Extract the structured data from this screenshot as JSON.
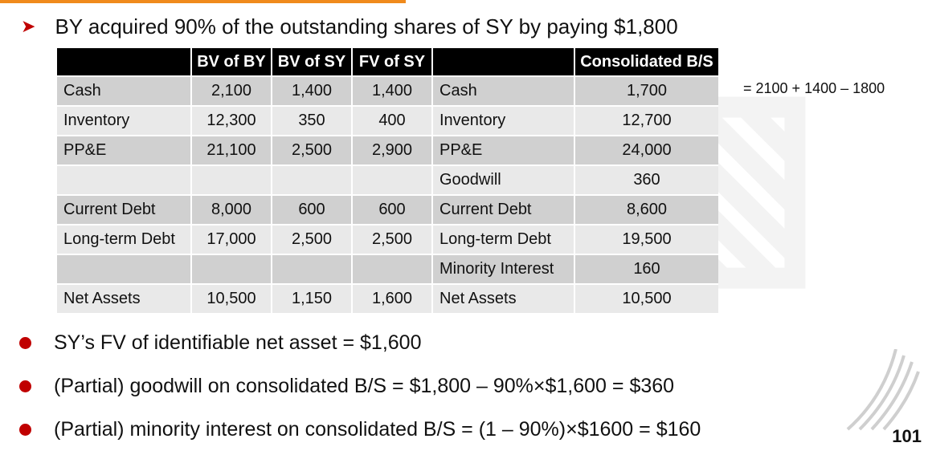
{
  "headline": "BY acquired 90% of the outstanding shares of SY by paying $1,800",
  "table": {
    "headers": [
      "",
      "BV of BY",
      "BV of SY",
      "FV of SY",
      "",
      "Consolidated B/S"
    ],
    "rows": [
      [
        "Cash",
        "2,100",
        "1,400",
        "1,400",
        "Cash",
        "1,700"
      ],
      [
        "Inventory",
        "12,300",
        "350",
        "400",
        "Inventory",
        "12,700"
      ],
      [
        "PP&E",
        "21,100",
        "2,500",
        "2,900",
        "PP&E",
        "24,000"
      ],
      [
        "",
        "",
        "",
        "",
        "Goodwill",
        "360"
      ],
      [
        "Current Debt",
        "8,000",
        "600",
        "600",
        "Current Debt",
        "8,600"
      ],
      [
        "Long-term Debt",
        "17,000",
        "2,500",
        "2,500",
        "Long-term Debt",
        "19,500"
      ],
      [
        "",
        "",
        "",
        "",
        "Minority Interest",
        "160"
      ],
      [
        "Net Assets",
        "10,500",
        "1,150",
        "1,600",
        "Net Assets",
        "10,500"
      ]
    ]
  },
  "side_note": "= 2100 + 1400 – 1800",
  "bullets": [
    "SY’s FV of identifiable net asset = $1,600",
    "(Partial) goodwill on consolidated B/S = $1,800 – 90%×$1,600 = $360",
    "(Partial) minority interest on consolidated B/S = (1 – 90%)×$1600 = $160"
  ],
  "page_number": "101",
  "colors": {
    "accent_orange": "#f08a1c",
    "bullet_red": "#c00000",
    "header_black": "#000000"
  }
}
